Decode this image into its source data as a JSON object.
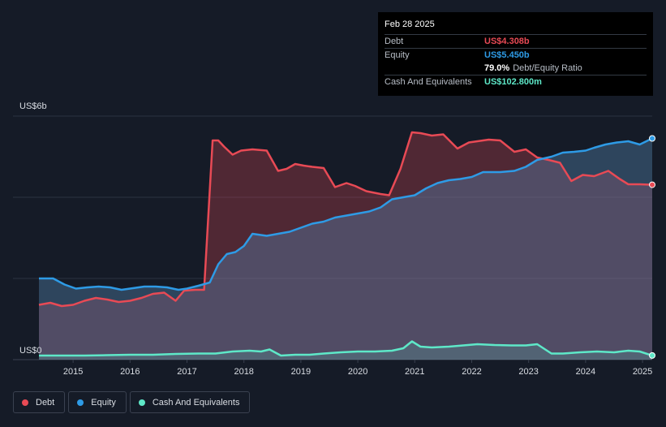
{
  "tooltip": {
    "date": "Feb 28 2025",
    "rows": [
      {
        "label": "Debt",
        "value": "US$4.308b",
        "color": "#e84a55"
      },
      {
        "label": "Equity",
        "value": "US$5.450b",
        "color": "#2e9be6"
      },
      {
        "label": "",
        "value": "79.0%",
        "color": "#ffffff",
        "extra": "Debt/Equity Ratio"
      },
      {
        "label": "Cash And Equivalents",
        "value": "US$102.800m",
        "color": "#5ee8c8"
      }
    ]
  },
  "legend": [
    {
      "label": "Debt",
      "color": "#e84a55"
    },
    {
      "label": "Equity",
      "color": "#2e9be6"
    },
    {
      "label": "Cash And Equivalents",
      "color": "#5ee8c8"
    }
  ],
  "chart_data": {
    "type": "area",
    "title": "",
    "xlabel": "",
    "ylabel": "",
    "y_axis_labels": [
      "US$6b",
      "US$0"
    ],
    "ylim": [
      0,
      6
    ],
    "xlim": [
      2014.4,
      2025.17
    ],
    "x_ticks": [
      2015,
      2016,
      2017,
      2018,
      2019,
      2020,
      2021,
      2022,
      2023,
      2024,
      2025
    ],
    "x_tick_labels": [
      "2015",
      "2016",
      "2017",
      "2018",
      "2019",
      "2020",
      "2021",
      "2022",
      "2023",
      "2024",
      "2025"
    ],
    "grid": true,
    "legend_position": "bottom-left",
    "series": [
      {
        "name": "Debt",
        "color": "#e84a55",
        "x": [
          2014.4,
          2014.6,
          2014.8,
          2015.0,
          2015.2,
          2015.4,
          2015.6,
          2015.8,
          2016.0,
          2016.2,
          2016.4,
          2016.6,
          2016.8,
          2016.95,
          2017.15,
          2017.3,
          2017.45,
          2017.55,
          2017.65,
          2017.8,
          2017.95,
          2018.15,
          2018.4,
          2018.6,
          2018.75,
          2018.9,
          2019.05,
          2019.2,
          2019.4,
          2019.6,
          2019.8,
          2019.95,
          2020.15,
          2020.4,
          2020.55,
          2020.75,
          2020.95,
          2021.1,
          2021.3,
          2021.5,
          2021.75,
          2021.95,
          2022.1,
          2022.3,
          2022.5,
          2022.75,
          2022.95,
          2023.15,
          2023.35,
          2023.55,
          2023.75,
          2023.95,
          2024.15,
          2024.4,
          2024.6,
          2024.75,
          2024.95,
          2025.17
        ],
        "values": [
          1.35,
          1.4,
          1.32,
          1.35,
          1.45,
          1.52,
          1.48,
          1.42,
          1.45,
          1.52,
          1.62,
          1.65,
          1.45,
          1.7,
          1.72,
          1.72,
          5.4,
          5.4,
          5.25,
          5.05,
          5.15,
          5.18,
          5.15,
          4.65,
          4.7,
          4.82,
          4.78,
          4.75,
          4.72,
          4.25,
          4.35,
          4.28,
          4.15,
          4.08,
          4.05,
          4.7,
          5.6,
          5.58,
          5.52,
          5.55,
          5.2,
          5.35,
          5.38,
          5.42,
          5.4,
          5.12,
          5.18,
          4.98,
          4.92,
          4.85,
          4.4,
          4.55,
          4.52,
          4.65,
          4.45,
          4.32,
          4.32,
          4.308
        ]
      },
      {
        "name": "Equity",
        "color": "#2e9be6",
        "x": [
          2014.4,
          2014.65,
          2014.85,
          2015.05,
          2015.25,
          2015.45,
          2015.65,
          2015.85,
          2016.0,
          2016.25,
          2016.45,
          2016.65,
          2016.85,
          2017.0,
          2017.2,
          2017.4,
          2017.55,
          2017.7,
          2017.85,
          2018.0,
          2018.15,
          2018.4,
          2018.6,
          2018.8,
          2019.0,
          2019.2,
          2019.4,
          2019.6,
          2019.8,
          2020.0,
          2020.2,
          2020.4,
          2020.6,
          2020.8,
          2021.0,
          2021.2,
          2021.4,
          2021.6,
          2021.8,
          2022.0,
          2022.2,
          2022.5,
          2022.75,
          2022.95,
          2023.15,
          2023.4,
          2023.6,
          2023.8,
          2024.0,
          2024.15,
          2024.35,
          2024.55,
          2024.75,
          2024.95,
          2025.17
        ],
        "values": [
          2.0,
          2.0,
          1.85,
          1.75,
          1.78,
          1.8,
          1.78,
          1.72,
          1.75,
          1.8,
          1.8,
          1.78,
          1.72,
          1.75,
          1.82,
          1.9,
          2.35,
          2.6,
          2.65,
          2.8,
          3.1,
          3.05,
          3.1,
          3.15,
          3.25,
          3.35,
          3.4,
          3.5,
          3.55,
          3.6,
          3.65,
          3.75,
          3.95,
          4.0,
          4.05,
          4.22,
          4.35,
          4.42,
          4.45,
          4.5,
          4.62,
          4.62,
          4.65,
          4.75,
          4.92,
          5.0,
          5.1,
          5.12,
          5.15,
          5.22,
          5.3,
          5.35,
          5.38,
          5.3,
          5.45
        ]
      },
      {
        "name": "Cash And Equivalents",
        "color": "#5ee8c8",
        "x": [
          2014.4,
          2014.8,
          2015.2,
          2015.6,
          2016.0,
          2016.4,
          2016.8,
          2017.2,
          2017.5,
          2017.8,
          2018.1,
          2018.3,
          2018.45,
          2018.65,
          2018.9,
          2019.15,
          2019.4,
          2019.7,
          2020.0,
          2020.3,
          2020.6,
          2020.8,
          2020.95,
          2021.1,
          2021.3,
          2021.6,
          2021.85,
          2022.1,
          2022.4,
          2022.7,
          2022.95,
          2023.15,
          2023.4,
          2023.6,
          2023.9,
          2024.2,
          2024.5,
          2024.75,
          2024.95,
          2025.17
        ],
        "values": [
          0.1,
          0.1,
          0.1,
          0.11,
          0.12,
          0.12,
          0.14,
          0.15,
          0.15,
          0.2,
          0.22,
          0.2,
          0.25,
          0.1,
          0.12,
          0.12,
          0.15,
          0.18,
          0.2,
          0.2,
          0.22,
          0.28,
          0.45,
          0.32,
          0.3,
          0.32,
          0.35,
          0.38,
          0.36,
          0.35,
          0.35,
          0.38,
          0.15,
          0.15,
          0.18,
          0.2,
          0.18,
          0.22,
          0.2,
          0.1028
        ]
      }
    ]
  }
}
